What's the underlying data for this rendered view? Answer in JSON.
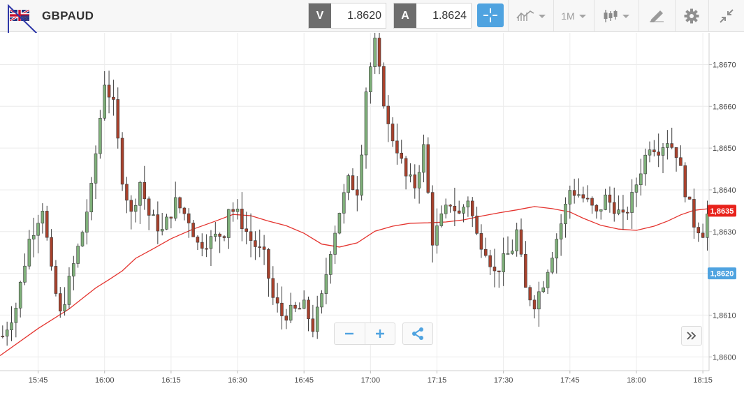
{
  "toolbar": {
    "symbol": "GBPAUD",
    "flag_icon": "gbp-aud-flag-icon",
    "bid_label": "V",
    "bid_value": "1.8620",
    "ask_label": "A",
    "ask_value": "1.8624",
    "timeframe": "1M",
    "icons": [
      "crosshair-icon",
      "chart-type-icon",
      "candlestick-icon",
      "drawing-tool-icon",
      "gear-icon",
      "collapse-icon"
    ]
  },
  "colors": {
    "up_candle": "#7fb07a",
    "down_candle": "#a8412c",
    "moving_average": "#e4332e",
    "accent": "#4fa3e0",
    "current_price": "#e8221b",
    "bid_badge": "#4fa3e0"
  },
  "chart_data": {
    "type": "candlestick",
    "y_ticks": [
      "1,8600",
      "1,8610",
      "1,8620",
      "1,8630",
      "1,8640",
      "1,8650",
      "1,8660",
      "1,8670"
    ],
    "y_tick_values": [
      1.86,
      1.861,
      1.862,
      1.863,
      1.864,
      1.865,
      1.866,
      1.867
    ],
    "x_ticks": [
      "15:45",
      "16:00",
      "16:15",
      "16:30",
      "16:45",
      "17:00",
      "17:15",
      "17:30",
      "17:45",
      "18:00",
      "18:15"
    ],
    "x_tick_minutes": [
      945,
      960,
      975,
      990,
      1005,
      1020,
      1035,
      1050,
      1065,
      1080,
      1095
    ],
    "x_range_minutes": [
      936.4,
      1096.4
    ],
    "ylim": [
      1.85967,
      1.86776
    ],
    "current_price_label": "1,8635",
    "current_price": 1.8635,
    "bid_price_label": "1,8620",
    "bid_price": 1.862,
    "grid": true,
    "close_path": [
      [
        937,
        1.8605
      ],
      [
        940,
        1.8612
      ],
      [
        943,
        1.8628
      ],
      [
        946,
        1.8636
      ],
      [
        948,
        1.862
      ],
      [
        950,
        1.861
      ],
      [
        952,
        1.8618
      ],
      [
        955,
        1.863
      ],
      [
        957,
        1.864
      ],
      [
        960,
        1.8666
      ],
      [
        962,
        1.866
      ],
      [
        964,
        1.8643
      ],
      [
        966,
        1.8634
      ],
      [
        968,
        1.8642
      ],
      [
        970,
        1.8634
      ],
      [
        973,
        1.863
      ],
      [
        976,
        1.8637
      ],
      [
        979,
        1.8633
      ],
      [
        981,
        1.8627
      ],
      [
        984,
        1.8628
      ],
      [
        987,
        1.863
      ],
      [
        988,
        1.8636
      ],
      [
        990,
        1.8634
      ],
      [
        993,
        1.8628
      ],
      [
        996,
        1.8624
      ],
      [
        998,
        1.8614
      ],
      [
        1000,
        1.861
      ],
      [
        1003,
        1.8611
      ],
      [
        1005,
        1.8612
      ],
      [
        1007,
        1.8607
      ],
      [
        1009,
        1.8614
      ],
      [
        1011,
        1.8626
      ],
      [
        1013,
        1.8635
      ],
      [
        1015,
        1.8642
      ],
      [
        1017,
        1.864
      ],
      [
        1018,
        1.865
      ],
      [
        1019,
        1.8664
      ],
      [
        1021,
        1.8675
      ],
      [
        1022,
        1.8668
      ],
      [
        1024,
        1.8655
      ],
      [
        1026,
        1.865
      ],
      [
        1028,
        1.8643
      ],
      [
        1030,
        1.8641
      ],
      [
        1032,
        1.865
      ],
      [
        1034,
        1.8628
      ],
      [
        1036,
        1.8633
      ],
      [
        1038,
        1.8637
      ],
      [
        1040,
        1.8634
      ],
      [
        1042,
        1.8638
      ],
      [
        1044,
        1.8629
      ],
      [
        1046,
        1.8626
      ],
      [
        1048,
        1.862
      ],
      [
        1050,
        1.8623
      ],
      [
        1052,
        1.8626
      ],
      [
        1053,
        1.863
      ],
      [
        1055,
        1.8616
      ],
      [
        1057,
        1.8613
      ],
      [
        1059,
        1.8618
      ],
      [
        1061,
        1.8625
      ],
      [
        1063,
        1.8632
      ],
      [
        1065,
        1.864
      ],
      [
        1067,
        1.8639
      ],
      [
        1069,
        1.8637
      ],
      [
        1071,
        1.8634
      ],
      [
        1073,
        1.8638
      ],
      [
        1075,
        1.8636
      ],
      [
        1077,
        1.8633
      ],
      [
        1079,
        1.8638
      ],
      [
        1081,
        1.8645
      ],
      [
        1083,
        1.8651
      ],
      [
        1085,
        1.865
      ],
      [
        1087,
        1.8652
      ],
      [
        1089,
        1.8649
      ],
      [
        1091,
        1.864
      ],
      [
        1093,
        1.8632
      ],
      [
        1095,
        1.863
      ],
      [
        1096,
        1.8634
      ]
    ],
    "moving_average": [
      [
        936.4,
        1.86003
      ],
      [
        945,
        1.86068
      ],
      [
        952,
        1.86115
      ],
      [
        958,
        1.86165
      ],
      [
        961,
        1.86185
      ],
      [
        964,
        1.86206
      ],
      [
        967,
        1.86236
      ],
      [
        971,
        1.86259
      ],
      [
        975,
        1.86283
      ],
      [
        980,
        1.86306
      ],
      [
        985,
        1.86325
      ],
      [
        989,
        1.86341
      ],
      [
        993,
        1.86338
      ],
      [
        997,
        1.86325
      ],
      [
        1001,
        1.86314
      ],
      [
        1005,
        1.86296
      ],
      [
        1009,
        1.8627
      ],
      [
        1013,
        1.86263
      ],
      [
        1017,
        1.86273
      ],
      [
        1021,
        1.86301
      ],
      [
        1025,
        1.86313
      ],
      [
        1029,
        1.8632
      ],
      [
        1033,
        1.86321
      ],
      [
        1037,
        1.86323
      ],
      [
        1041,
        1.86328
      ],
      [
        1045,
        1.86337
      ],
      [
        1049,
        1.86345
      ],
      [
        1053,
        1.86352
      ],
      [
        1057,
        1.8636
      ],
      [
        1061,
        1.86355
      ],
      [
        1065,
        1.86347
      ],
      [
        1068,
        1.86332
      ],
      [
        1072,
        1.86315
      ],
      [
        1076,
        1.86306
      ],
      [
        1080,
        1.86303
      ],
      [
        1084,
        1.86313
      ],
      [
        1087,
        1.86325
      ],
      [
        1090,
        1.8634
      ],
      [
        1093,
        1.86351
      ],
      [
        1096.4,
        1.86355
      ]
    ]
  }
}
